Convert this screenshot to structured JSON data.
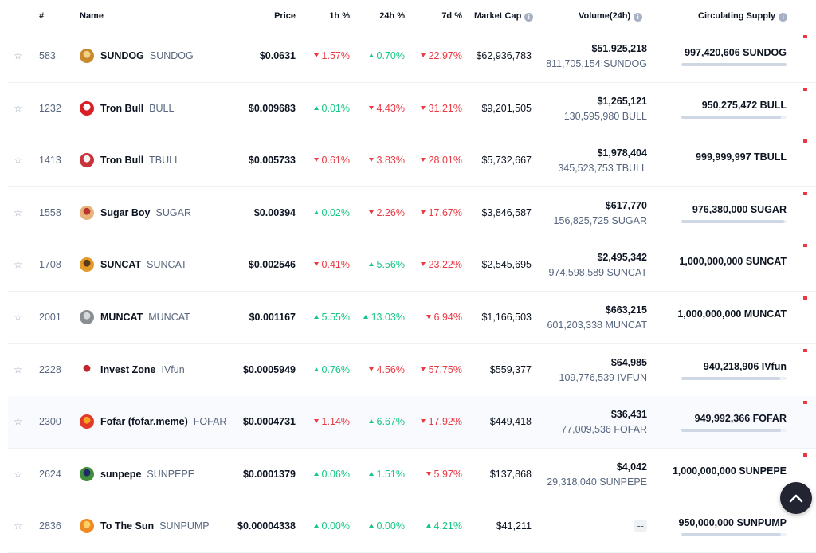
{
  "header": {
    "rank": "#",
    "name": "Name",
    "price": "Price",
    "h1": "1h %",
    "h24": "24h %",
    "d7": "7d %",
    "market_cap": "Market Cap",
    "volume": "Volume(24h)",
    "supply": "Circulating Supply",
    "info_icon": "i"
  },
  "star_icon": "☆",
  "rows": [
    {
      "rank": "583",
      "name": "SUNDOG",
      "symbol": "SUNDOG",
      "price": "$0.0631",
      "h1": "1.57%",
      "h1_dir": "down",
      "h24": "0.70%",
      "h24_dir": "up",
      "d7": "22.97%",
      "d7_dir": "down",
      "market_cap": "$62,936,783",
      "volume": "$51,925,218",
      "volume_sub": "811,705,154 SUNDOG",
      "supply": "997,420,606 SUNDOG",
      "supply_fill": 0.997,
      "logo_colors": [
        "#c98a2e",
        "#f2d28a"
      ]
    },
    {
      "rank": "1232",
      "name": "Tron Bull",
      "symbol": "BULL",
      "price": "$0.009683",
      "h1": "0.01%",
      "h1_dir": "up",
      "h24": "4.43%",
      "h24_dir": "down",
      "d7": "31.21%",
      "d7_dir": "down",
      "market_cap": "$9,201,505",
      "volume": "$1,265,121",
      "volume_sub": "130,595,980 BULL",
      "supply": "950,275,472 BULL",
      "supply_fill": 0.95,
      "logo_colors": [
        "#d81f26",
        "#ffffff"
      ]
    },
    {
      "rank": "1413",
      "name": "Tron Bull",
      "symbol": "TBULL",
      "price": "$0.005733",
      "h1": "0.61%",
      "h1_dir": "down",
      "h24": "3.83%",
      "h24_dir": "down",
      "d7": "28.01%",
      "d7_dir": "down",
      "market_cap": "$5,732,667",
      "volume": "$1,978,404",
      "volume_sub": "345,523,753 TBULL",
      "supply": "999,999,997 TBULL",
      "supply_fill": null,
      "logo_colors": [
        "#c9343b",
        "#f4f4f4"
      ]
    },
    {
      "rank": "1558",
      "name": "Sugar Boy",
      "symbol": "SUGAR",
      "price": "$0.00394",
      "h1": "0.02%",
      "h1_dir": "up",
      "h24": "2.26%",
      "h24_dir": "down",
      "d7": "17.67%",
      "d7_dir": "down",
      "market_cap": "$3,846,587",
      "volume": "$617,770",
      "volume_sub": "156,825,725 SUGAR",
      "supply": "976,380,000 SUGAR",
      "supply_fill": 0.976,
      "logo_colors": [
        "#e8b37a",
        "#b8372f"
      ]
    },
    {
      "rank": "1708",
      "name": "SUNCAT",
      "symbol": "SUNCAT",
      "price": "$0.002546",
      "h1": "0.41%",
      "h1_dir": "down",
      "h24": "5.56%",
      "h24_dir": "up",
      "d7": "23.22%",
      "d7_dir": "down",
      "market_cap": "$2,545,695",
      "volume": "$2,495,342",
      "volume_sub": "974,598,589 SUNCAT",
      "supply": "1,000,000,000 SUNCAT",
      "supply_fill": null,
      "logo_colors": [
        "#e39a2a",
        "#5a3a18"
      ]
    },
    {
      "rank": "2001",
      "name": "MUNCAT",
      "symbol": "MUNCAT",
      "price": "$0.001167",
      "h1": "5.55%",
      "h1_dir": "up",
      "h24": "13.03%",
      "h24_dir": "up",
      "d7": "6.94%",
      "d7_dir": "down",
      "market_cap": "$1,166,503",
      "volume": "$663,215",
      "volume_sub": "601,203,338 MUNCAT",
      "supply": "1,000,000,000 MUNCAT",
      "supply_fill": null,
      "logo_colors": [
        "#8a8f96",
        "#d9dadc"
      ]
    },
    {
      "rank": "2228",
      "name": "Invest Zone",
      "symbol": "IVfun",
      "price": "$0.0005949",
      "h1": "0.76%",
      "h1_dir": "up",
      "h24": "4.56%",
      "h24_dir": "down",
      "d7": "57.75%",
      "d7_dir": "down",
      "market_cap": "$559,377",
      "volume": "$64,985",
      "volume_sub": "109,776,539 IVFUN",
      "supply": "940,218,906 IVfun",
      "supply_fill": 0.94,
      "logo_colors": [
        "#ffffff",
        "#c0272d"
      ]
    },
    {
      "rank": "2300",
      "name": "Fofar (fofar.meme)",
      "symbol": "FOFAR",
      "price": "$0.0004731",
      "h1": "1.14%",
      "h1_dir": "down",
      "h24": "6.67%",
      "h24_dir": "up",
      "d7": "17.92%",
      "d7_dir": "down",
      "market_cap": "$449,418",
      "volume": "$36,431",
      "volume_sub": "77,009,536 FOFAR",
      "supply": "949,992,366 FOFAR",
      "supply_fill": 0.95,
      "logo_colors": [
        "#e23a2a",
        "#f5a623"
      ]
    },
    {
      "rank": "2624",
      "name": "sunpepe",
      "symbol": "SUNPEPE",
      "price": "$0.0001379",
      "h1": "0.06%",
      "h1_dir": "up",
      "h24": "1.51%",
      "h24_dir": "up",
      "d7": "5.97%",
      "d7_dir": "down",
      "market_cap": "$137,868",
      "volume": "$4,042",
      "volume_sub": "29,318,040 SUNPEPE",
      "supply": "1,000,000,000 SUNPEPE",
      "supply_fill": null,
      "logo_colors": [
        "#3e8e3a",
        "#1f2a6b"
      ]
    },
    {
      "rank": "2836",
      "name": "To The Sun",
      "symbol": "SUNPUMP",
      "price": "$0.00004338",
      "h1": "0.00%",
      "h1_dir": "up",
      "h24": "0.00%",
      "h24_dir": "up",
      "d7": "4.21%",
      "d7_dir": "up",
      "market_cap": "$41,211",
      "volume": "--",
      "volume_sub": "",
      "supply": "950,000,000 SUNPUMP",
      "supply_fill": 0.95,
      "logo_colors": [
        "#f08a24",
        "#ffd066"
      ]
    }
  ],
  "scroll_top_icon": "chevron-up"
}
